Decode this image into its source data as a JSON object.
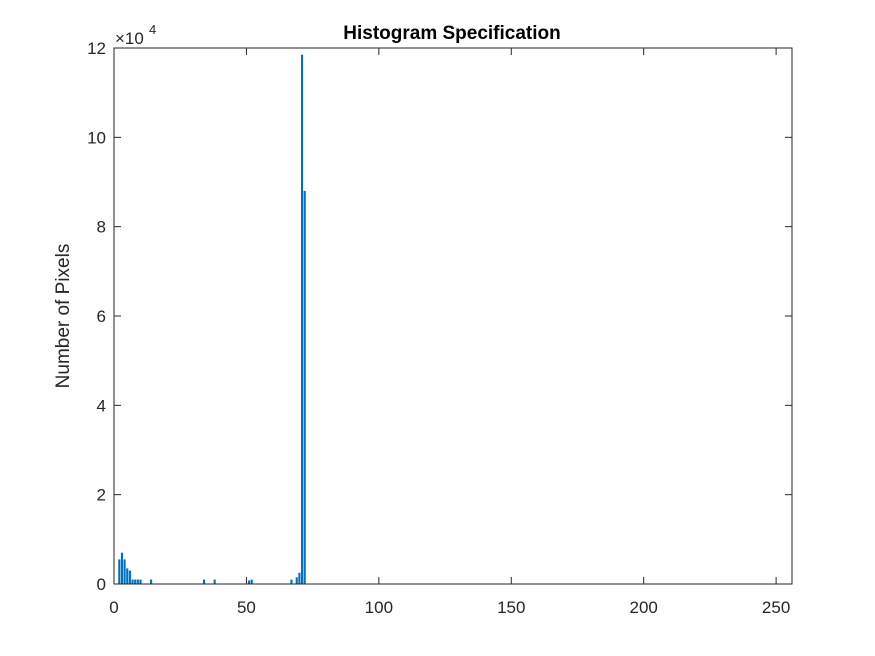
{
  "chart_data": {
    "type": "bar",
    "title": "Histogram Specification",
    "xlabel": "",
    "ylabel": "Number of Pixels",
    "xlim": [
      0,
      256
    ],
    "ylim": [
      0,
      120000
    ],
    "xticks": [
      0,
      50,
      100,
      150,
      200,
      250
    ],
    "yticks": [
      0,
      20000,
      40000,
      60000,
      80000,
      100000,
      120000
    ],
    "ytick_labels": [
      "0",
      "2",
      "4",
      "6",
      "8",
      "10",
      "12"
    ],
    "y_exponent_label": "×10",
    "y_exponent_power": "4",
    "grid": false,
    "bar_color": "#0072BD",
    "x": [
      2,
      3,
      4,
      5,
      6,
      7,
      8,
      9,
      10,
      14,
      34,
      38,
      51,
      52,
      67,
      69,
      70,
      71,
      72
    ],
    "values": [
      5500,
      7000,
      5500,
      3500,
      3000,
      1000,
      1000,
      1000,
      1000,
      1000,
      1000,
      1000,
      800,
      1000,
      1000,
      1500,
      2500,
      118500,
      88000
    ]
  }
}
